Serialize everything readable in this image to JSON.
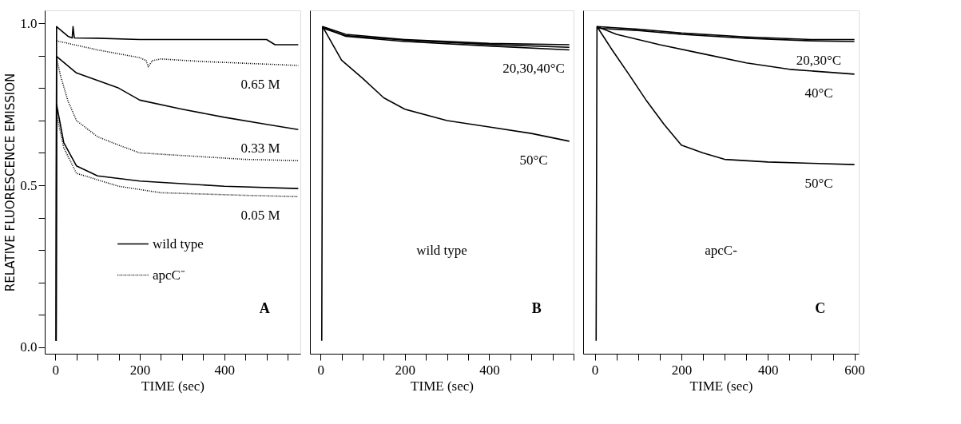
{
  "chart_data": [
    {
      "type": "line",
      "title": "A",
      "xlabel": "TIME (sec)",
      "ylabel": "RELATIVE FLUORESCENCE EMISSION",
      "legend": "bottom left",
      "xlim": [
        -25,
        580
      ],
      "ylim": [
        -0.02,
        1.04
      ],
      "xticks": [
        0,
        {
          "value": 50,
          "label": null
        },
        {
          "value": 100,
          "label": null
        },
        {
          "value": 150,
          "label": null
        },
        200,
        {
          "value": 250,
          "label": null
        },
        {
          "value": 300,
          "label": null
        },
        {
          "value": 350,
          "label": null
        },
        400,
        {
          "value": 450,
          "label": null
        },
        {
          "value": 500,
          "label": null
        },
        {
          "value": 550,
          "label": null
        }
      ],
      "yticks": [
        {
          "value": 0,
          "label": "0.0"
        },
        {
          "value": 0.1,
          "label": null
        },
        {
          "value": 0.2,
          "label": null
        },
        {
          "value": 0.3,
          "label": null
        },
        {
          "value": 0.4,
          "label": null
        },
        {
          "value": 0.5,
          "label": "0.5"
        },
        {
          "value": 0.6,
          "label": null
        },
        {
          "value": 0.7,
          "label": null
        },
        {
          "value": 0.8,
          "label": null
        },
        {
          "value": 0.9,
          "label": null
        },
        {
          "value": 1,
          "label": "1.0"
        }
      ],
      "series": [
        {
          "name": "wild type",
          "color": "#000000",
          "line_style": "solid",
          "x": [
            2,
            3,
            30,
            40,
            42,
            45,
            100,
            200,
            300,
            400,
            500,
            520,
            575
          ],
          "values": [
            0.02,
            0.99,
            0.96,
            0.955,
            0.99,
            0.955,
            0.954,
            0.95,
            0.95,
            0.95,
            0.95,
            0.934,
            0.934
          ]
        },
        {
          "name": "apcC⁻",
          "color": "#000000",
          "line_style": "dotted",
          "x": [
            3,
            100,
            200,
            215,
            220,
            230,
            250,
            350,
            500,
            575
          ],
          "values": [
            0.946,
            0.918,
            0.894,
            0.885,
            0.866,
            0.885,
            0.89,
            0.882,
            0.874,
            0.87
          ]
        },
        {
          "color": "#000000",
          "line_style": "solid",
          "x": [
            2,
            3,
            50,
            150,
            200,
            300,
            400,
            500,
            575
          ],
          "values": [
            0.02,
            0.898,
            0.847,
            0.8,
            0.763,
            0.735,
            0.71,
            0.688,
            0.672
          ]
        },
        {
          "color": "#000000",
          "line_style": "dotted",
          "x": [
            3,
            12,
            30,
            50,
            100,
            150,
            200,
            250,
            350,
            450,
            575
          ],
          "values": [
            0.894,
            0.84,
            0.76,
            0.7,
            0.65,
            0.624,
            0.6,
            0.596,
            0.588,
            0.58,
            0.576
          ]
        },
        {
          "color": "#000000",
          "line_style": "solid",
          "x": [
            2,
            3,
            20,
            50,
            100,
            200,
            300,
            400,
            575
          ],
          "values": [
            0.02,
            0.75,
            0.632,
            0.56,
            0.529,
            0.513,
            0.505,
            0.497,
            0.49
          ]
        },
        {
          "color": "#000000",
          "line_style": "dotted",
          "x": [
            3,
            20,
            50,
            150,
            250,
            350,
            450,
            575
          ],
          "values": [
            0.72,
            0.616,
            0.537,
            0.497,
            0.477,
            0.473,
            0.469,
            0.465
          ]
        }
      ],
      "annotations": [
        "0.65 M",
        "0.33 M",
        "0.05 M"
      ]
    },
    {
      "type": "line",
      "title": "B",
      "subtitle": "wild type",
      "xlabel": "TIME (sec)",
      "tick_labels": "x",
      "xlim": [
        -25,
        600
      ],
      "ylim": [
        -0.02,
        1.04
      ],
      "xticks": [
        0,
        {
          "value": 50,
          "label": null
        },
        {
          "value": 100,
          "label": null
        },
        {
          "value": 150,
          "label": null
        },
        200,
        {
          "value": 250,
          "label": null
        },
        {
          "value": 300,
          "label": null
        },
        {
          "value": 350,
          "label": null
        },
        400,
        {
          "value": 450,
          "label": null
        },
        {
          "value": 500,
          "label": null
        },
        {
          "value": 550,
          "label": null
        },
        {
          "value": 600,
          "label": null
        }
      ],
      "series": [
        {
          "color": "#000000",
          "line_style": "solid",
          "x": [
            3,
            5,
            60,
            200,
            400,
            590
          ],
          "values": [
            0.02,
            0.99,
            0.966,
            0.95,
            0.938,
            0.934
          ]
        },
        {
          "color": "#000000",
          "line_style": "solid",
          "x": [
            5,
            60,
            200,
            400,
            590
          ],
          "values": [
            0.985,
            0.962,
            0.948,
            0.935,
            0.926
          ]
        },
        {
          "color": "#000000",
          "line_style": "solid",
          "x": [
            5,
            60,
            200,
            400,
            590
          ],
          "values": [
            0.988,
            0.96,
            0.944,
            0.93,
            0.918
          ]
        },
        {
          "color": "#000000",
          "line_style": "solid",
          "x": [
            5,
            50,
            100,
            150,
            200,
            300,
            400,
            500,
            590
          ],
          "values": [
            0.99,
            0.886,
            0.83,
            0.77,
            0.735,
            0.7,
            0.68,
            0.66,
            0.636
          ]
        }
      ],
      "annotations": [
        "20,30,40°C",
        "50°C"
      ]
    },
    {
      "type": "line",
      "title": "C",
      "subtitle": "apcC-",
      "xlabel": "TIME (sec)",
      "tick_labels": "x",
      "xlim": [
        -27,
        610
      ],
      "ylim": [
        -0.02,
        1.04
      ],
      "xticks": [
        0,
        {
          "value": 50,
          "label": null
        },
        {
          "value": 100,
          "label": null
        },
        {
          "value": 150,
          "label": null
        },
        200,
        {
          "value": 250,
          "label": null
        },
        {
          "value": 300,
          "label": null
        },
        {
          "value": 350,
          "label": null
        },
        400,
        {
          "value": 450,
          "label": null
        },
        {
          "value": 500,
          "label": null
        },
        {
          "value": 550,
          "label": null
        },
        600
      ],
      "series": [
        {
          "color": "#000000",
          "line_style": "solid",
          "x": [
            3,
            5,
            100,
            200,
            350,
            500,
            600
          ],
          "values": [
            0.02,
            0.99,
            0.982,
            0.97,
            0.958,
            0.95,
            0.95
          ]
        },
        {
          "color": "#000000",
          "line_style": "solid",
          "x": [
            5,
            100,
            200,
            350,
            500,
            600
          ],
          "values": [
            0.985,
            0.978,
            0.966,
            0.954,
            0.946,
            0.944
          ]
        },
        {
          "color": "#000000",
          "line_style": "solid",
          "x": [
            5,
            50,
            150,
            250,
            350,
            450,
            600
          ],
          "values": [
            0.99,
            0.966,
            0.934,
            0.906,
            0.878,
            0.858,
            0.843
          ]
        },
        {
          "color": "#000000",
          "line_style": "solid",
          "x": [
            5,
            40,
            80,
            120,
            160,
            200,
            250,
            300,
            400,
            500,
            600
          ],
          "values": [
            0.99,
            0.918,
            0.84,
            0.76,
            0.688,
            0.624,
            0.6,
            0.58,
            0.572,
            0.568,
            0.564
          ]
        }
      ],
      "annotations": [
        "20,30°C",
        "40°C",
        "50°C"
      ]
    }
  ]
}
